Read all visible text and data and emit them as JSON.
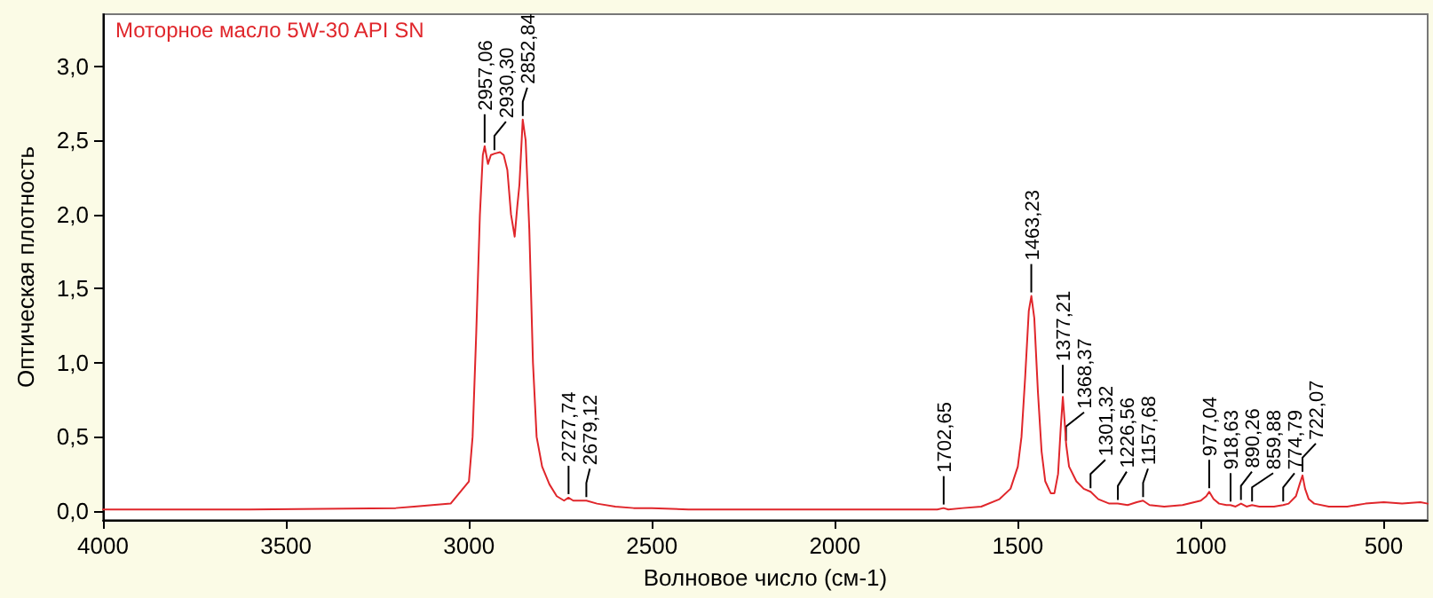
{
  "chart_data": {
    "type": "line",
    "title": "Моторное масло 5W-30 API SN",
    "xlabel": "Волновое число (см-1)",
    "ylabel": "Оптическая плотность",
    "x": [
      4000,
      3600,
      3200,
      3150,
      3050,
      3000,
      2990,
      2980,
      2970,
      2962,
      2957,
      2948,
      2940,
      2930,
      2915,
      2905,
      2895,
      2885,
      2875,
      2868,
      2862,
      2853,
      2845,
      2835,
      2825,
      2815,
      2800,
      2780,
      2760,
      2740,
      2728,
      2715,
      2700,
      2679,
      2650,
      2600,
      2550,
      2500,
      2400,
      2000,
      1800,
      1720,
      1703,
      1690,
      1650,
      1600,
      1550,
      1520,
      1500,
      1490,
      1480,
      1470,
      1463,
      1455,
      1445,
      1435,
      1425,
      1410,
      1400,
      1390,
      1383,
      1377,
      1372,
      1368,
      1360,
      1340,
      1320,
      1301,
      1280,
      1250,
      1227,
      1200,
      1175,
      1158,
      1140,
      1100,
      1050,
      1000,
      985,
      977,
      965,
      950,
      930,
      919,
      905,
      890,
      875,
      860,
      840,
      800,
      775,
      760,
      740,
      730,
      722,
      715,
      705,
      690,
      650,
      600,
      550,
      500,
      450,
      400,
      380
    ],
    "series": [
      {
        "color": "#e0262b",
        "values": [
          0.01,
          0.01,
          0.02,
          0.03,
          0.05,
          0.2,
          0.5,
          1.2,
          2.0,
          2.4,
          2.46,
          2.34,
          2.4,
          2.41,
          2.42,
          2.4,
          2.3,
          2.0,
          1.85,
          2.05,
          2.2,
          2.64,
          2.5,
          1.9,
          1.0,
          0.5,
          0.3,
          0.18,
          0.1,
          0.07,
          0.09,
          0.07,
          0.07,
          0.07,
          0.05,
          0.03,
          0.02,
          0.02,
          0.01,
          0.01,
          0.01,
          0.01,
          0.02,
          0.01,
          0.02,
          0.03,
          0.08,
          0.15,
          0.3,
          0.5,
          0.9,
          1.35,
          1.45,
          1.3,
          0.8,
          0.4,
          0.2,
          0.12,
          0.12,
          0.25,
          0.55,
          0.77,
          0.6,
          0.45,
          0.3,
          0.2,
          0.15,
          0.13,
          0.08,
          0.05,
          0.05,
          0.04,
          0.06,
          0.07,
          0.04,
          0.03,
          0.04,
          0.07,
          0.1,
          0.13,
          0.08,
          0.05,
          0.04,
          0.04,
          0.03,
          0.05,
          0.03,
          0.04,
          0.03,
          0.03,
          0.04,
          0.05,
          0.1,
          0.18,
          0.24,
          0.15,
          0.08,
          0.05,
          0.03,
          0.03,
          0.05,
          0.06,
          0.05,
          0.06,
          0.05
        ]
      }
    ],
    "xlim": [
      4000,
      380
    ],
    "xticks": [
      4000,
      3500,
      3000,
      2500,
      2000,
      1500,
      1000,
      500
    ],
    "ylim": [
      -0.06,
      3.35
    ],
    "yticks": [
      {
        "value": 0,
        "label": "0,0"
      },
      {
        "value": 0.5,
        "label": "0,5"
      },
      {
        "value": 1,
        "label": "1,0"
      },
      {
        "value": 1.5,
        "label": "1,5"
      },
      {
        "value": 2,
        "label": "2,0"
      },
      {
        "value": 2.5,
        "label": "2,5"
      },
      {
        "value": 3,
        "label": "3,0"
      }
    ],
    "marker": "none",
    "line_style": "solid",
    "annotations": [
      {
        "text": "2957,06",
        "x": 2957.06,
        "y": 2.46
      },
      {
        "text": "2930,30",
        "x": 2930.3,
        "y": 2.41
      },
      {
        "text": "2852,84",
        "x": 2852.84,
        "y": 2.64
      },
      {
        "text": "2727,74",
        "x": 2727.74,
        "y": 0.09
      },
      {
        "text": "2679,12",
        "x": 2679.12,
        "y": 0.07
      },
      {
        "text": "1702,65",
        "x": 1702.65,
        "y": 0.02
      },
      {
        "text": "1463,23",
        "x": 1463.23,
        "y": 1.45
      },
      {
        "text": "1377,21",
        "x": 1377.21,
        "y": 0.77
      },
      {
        "text": "1368,37",
        "x": 1368.37,
        "y": 0.45
      },
      {
        "text": "1301,32",
        "x": 1301.32,
        "y": 0.13
      },
      {
        "text": "1226,56",
        "x": 1226.56,
        "y": 0.05
      },
      {
        "text": "1157,68",
        "x": 1157.68,
        "y": 0.07
      },
      {
        "text": "977,04",
        "x": 977.04,
        "y": 0.13
      },
      {
        "text": "918,63",
        "x": 918.63,
        "y": 0.04
      },
      {
        "text": "890,26",
        "x": 890.26,
        "y": 0.05
      },
      {
        "text": "859,88",
        "x": 859.88,
        "y": 0.04
      },
      {
        "text": "774,79",
        "x": 774.79,
        "y": 0.04
      },
      {
        "text": "722,07",
        "x": 722.07,
        "y": 0.24
      }
    ]
  }
}
